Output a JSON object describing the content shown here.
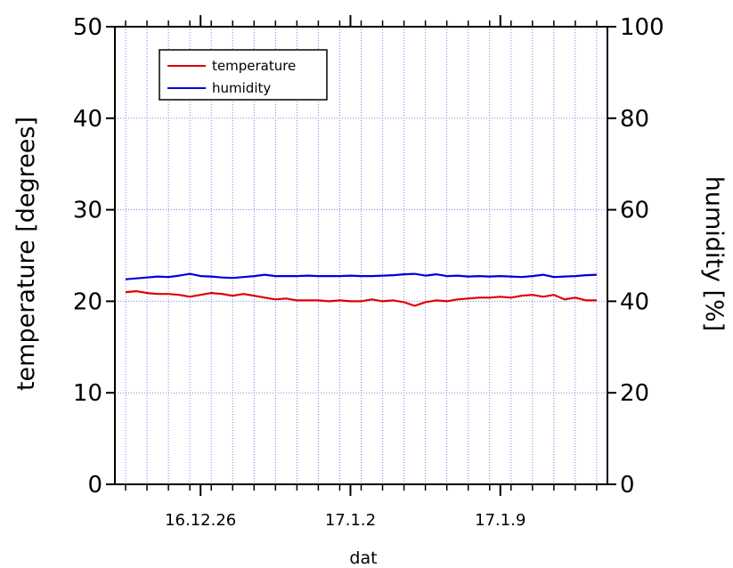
{
  "chart_data": {
    "type": "line",
    "xlabel": "dat",
    "ylabel_left": "temperature [degrees]",
    "ylabel_right": "humidity [%]",
    "x_ticks": [
      {
        "date": "2016-12-26",
        "label": "16.12.26"
      },
      {
        "date": "2017-01-02",
        "label": "17.1.2"
      },
      {
        "date": "2017-01-09",
        "label": "17.1.9"
      }
    ],
    "xlim": [
      "2016-12-22",
      "2017-01-14"
    ],
    "ylim_left": [
      0,
      50
    ],
    "ylim_right": [
      0,
      100
    ],
    "y_ticks_left": [
      0,
      10,
      20,
      30,
      40,
      50
    ],
    "y_ticks_right": [
      0,
      20,
      40,
      60,
      80,
      100
    ],
    "grid": true,
    "legend_position": "top-left",
    "series": [
      {
        "name": "temperature",
        "axis": "left",
        "color": "#e00000",
        "points": [
          [
            "2016-12-22 12:00",
            21.0
          ],
          [
            "2016-12-23 00:00",
            21.1
          ],
          [
            "2016-12-23 12:00",
            20.9
          ],
          [
            "2016-12-24 00:00",
            20.8
          ],
          [
            "2016-12-24 12:00",
            20.8
          ],
          [
            "2016-12-25 00:00",
            20.7
          ],
          [
            "2016-12-25 12:00",
            20.5
          ],
          [
            "2016-12-26 00:00",
            20.7
          ],
          [
            "2016-12-26 12:00",
            20.9
          ],
          [
            "2016-12-27 00:00",
            20.8
          ],
          [
            "2016-12-27 12:00",
            20.6
          ],
          [
            "2016-12-28 00:00",
            20.8
          ],
          [
            "2016-12-28 12:00",
            20.6
          ],
          [
            "2016-12-29 00:00",
            20.4
          ],
          [
            "2016-12-29 12:00",
            20.2
          ],
          [
            "2016-12-30 00:00",
            20.3
          ],
          [
            "2016-12-30 12:00",
            20.1
          ],
          [
            "2016-12-31 00:00",
            20.1
          ],
          [
            "2016-12-31 12:00",
            20.1
          ],
          [
            "2017-01-01 00:00",
            20.0
          ],
          [
            "2017-01-01 12:00",
            20.1
          ],
          [
            "2017-01-02 00:00",
            20.0
          ],
          [
            "2017-01-02 12:00",
            20.0
          ],
          [
            "2017-01-03 00:00",
            20.2
          ],
          [
            "2017-01-03 12:00",
            20.0
          ],
          [
            "2017-01-04 00:00",
            20.1
          ],
          [
            "2017-01-04 12:00",
            19.9
          ],
          [
            "2017-01-05 00:00",
            19.5
          ],
          [
            "2017-01-05 12:00",
            19.9
          ],
          [
            "2017-01-06 00:00",
            20.1
          ],
          [
            "2017-01-06 12:00",
            20.0
          ],
          [
            "2017-01-07 00:00",
            20.2
          ],
          [
            "2017-01-07 12:00",
            20.3
          ],
          [
            "2017-01-08 00:00",
            20.4
          ],
          [
            "2017-01-08 12:00",
            20.4
          ],
          [
            "2017-01-09 00:00",
            20.5
          ],
          [
            "2017-01-09 12:00",
            20.4
          ],
          [
            "2017-01-10 00:00",
            20.6
          ],
          [
            "2017-01-10 12:00",
            20.7
          ],
          [
            "2017-01-11 00:00",
            20.5
          ],
          [
            "2017-01-11 12:00",
            20.7
          ],
          [
            "2017-01-12 00:00",
            20.2
          ],
          [
            "2017-01-12 12:00",
            20.4
          ],
          [
            "2017-01-13 00:00",
            20.1
          ],
          [
            "2017-01-13 12:00",
            20.1
          ]
        ]
      },
      {
        "name": "humidity",
        "axis": "right",
        "color": "#0000dd",
        "points": [
          [
            "2016-12-22 12:00",
            44.8
          ],
          [
            "2016-12-23 00:00",
            45.0
          ],
          [
            "2016-12-23 12:00",
            45.2
          ],
          [
            "2016-12-24 00:00",
            45.4
          ],
          [
            "2016-12-24 12:00",
            45.3
          ],
          [
            "2016-12-25 00:00",
            45.6
          ],
          [
            "2016-12-25 12:00",
            46.0
          ],
          [
            "2016-12-26 00:00",
            45.5
          ],
          [
            "2016-12-26 12:00",
            45.4
          ],
          [
            "2016-12-27 00:00",
            45.2
          ],
          [
            "2016-12-27 12:00",
            45.1
          ],
          [
            "2016-12-28 00:00",
            45.3
          ],
          [
            "2016-12-28 12:00",
            45.5
          ],
          [
            "2016-12-29 00:00",
            45.8
          ],
          [
            "2016-12-29 12:00",
            45.5
          ],
          [
            "2016-12-30 00:00",
            45.5
          ],
          [
            "2016-12-30 12:00",
            45.5
          ],
          [
            "2016-12-31 00:00",
            45.6
          ],
          [
            "2016-12-31 12:00",
            45.5
          ],
          [
            "2017-01-01 00:00",
            45.5
          ],
          [
            "2017-01-01 12:00",
            45.5
          ],
          [
            "2017-01-02 00:00",
            45.6
          ],
          [
            "2017-01-02 12:00",
            45.5
          ],
          [
            "2017-01-03 00:00",
            45.5
          ],
          [
            "2017-01-03 12:00",
            45.6
          ],
          [
            "2017-01-04 00:00",
            45.7
          ],
          [
            "2017-01-04 12:00",
            45.9
          ],
          [
            "2017-01-05 00:00",
            46.0
          ],
          [
            "2017-01-05 12:00",
            45.6
          ],
          [
            "2017-01-06 00:00",
            45.9
          ],
          [
            "2017-01-06 12:00",
            45.5
          ],
          [
            "2017-01-07 00:00",
            45.6
          ],
          [
            "2017-01-07 12:00",
            45.4
          ],
          [
            "2017-01-08 00:00",
            45.5
          ],
          [
            "2017-01-08 12:00",
            45.4
          ],
          [
            "2017-01-09 00:00",
            45.5
          ],
          [
            "2017-01-09 12:00",
            45.4
          ],
          [
            "2017-01-10 00:00",
            45.3
          ],
          [
            "2017-01-10 12:00",
            45.5
          ],
          [
            "2017-01-11 00:00",
            45.8
          ],
          [
            "2017-01-11 12:00",
            45.3
          ],
          [
            "2017-01-12 00:00",
            45.4
          ],
          [
            "2017-01-12 12:00",
            45.5
          ],
          [
            "2017-01-13 00:00",
            45.7
          ],
          [
            "2017-01-13 12:00",
            45.8
          ]
        ]
      }
    ]
  }
}
